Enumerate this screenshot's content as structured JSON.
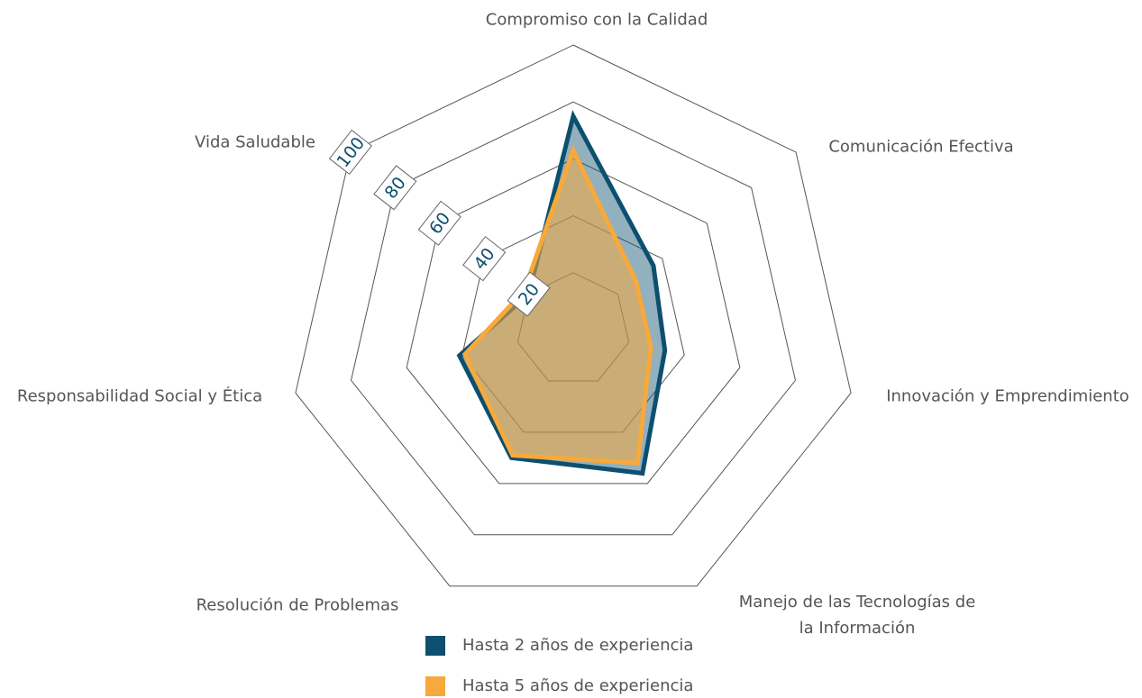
{
  "chart_data": {
    "type": "radar",
    "categories": [
      "Compromiso con la Calidad",
      "Comunicación Efectiva",
      "Innovación y Emprendimiento",
      "Manejo de las Tecnologías de la Información",
      "Resolución de Problemas",
      "Responsabilidad Social y Ética",
      "Vida Saludable"
    ],
    "series": [
      {
        "name": "Hasta 2 años de experiencia",
        "color": "#0d4f6e",
        "values": [
          75,
          36,
          33,
          56,
          50,
          41,
          20
        ]
      },
      {
        "name": "Hasta 5 años de experiencia",
        "color": "#f7a93b",
        "values": [
          63,
          28,
          28,
          52,
          49,
          39,
          22
        ]
      }
    ],
    "ylim": [
      0,
      100
    ],
    "yticks": [
      20,
      40,
      60,
      80,
      100
    ],
    "grid": true
  }
}
